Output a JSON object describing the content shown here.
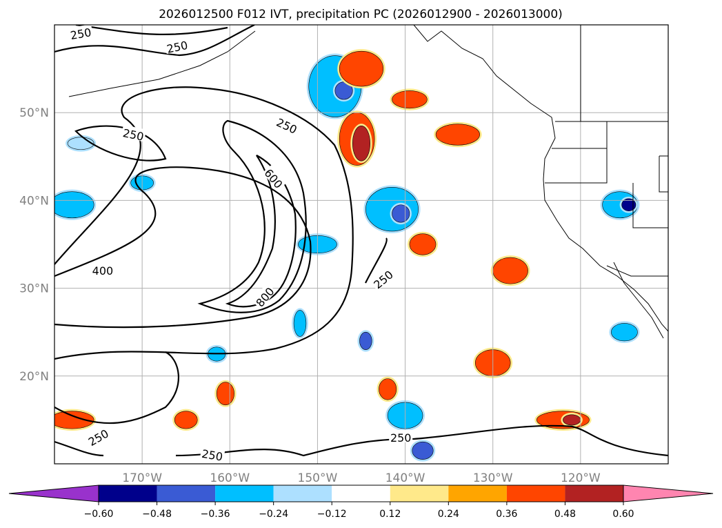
{
  "chart_data": {
    "type": "map-contour",
    "title": "2026012500 F012 IVT, precipitation PC (2026012900 - 2026013000)",
    "lon_range": [
      -180,
      -110
    ],
    "lat_range": [
      10,
      60
    ],
    "lat_ticks": [
      {
        "value": 20,
        "label": "20°N"
      },
      {
        "value": 30,
        "label": "30°N"
      },
      {
        "value": 40,
        "label": "40°N"
      },
      {
        "value": 50,
        "label": "50°N"
      }
    ],
    "lon_ticks": [
      {
        "value": -170,
        "label": "170°W"
      },
      {
        "value": -160,
        "label": "160°W"
      },
      {
        "value": -150,
        "label": "150°W"
      },
      {
        "value": -140,
        "label": "140°W"
      },
      {
        "value": -130,
        "label": "130°W"
      },
      {
        "value": -120,
        "label": "120°W"
      }
    ],
    "grid": true,
    "ivt_contour_levels": [
      250,
      400,
      600,
      800
    ],
    "ivt_contour_labels": [
      {
        "text": "250",
        "lon": -177,
        "lat": 59,
        "rot": -10
      },
      {
        "text": "250",
        "lon": -166,
        "lat": 57.5,
        "rot": -12
      },
      {
        "text": "250",
        "lon": -171,
        "lat": 47.5,
        "rot": 12
      },
      {
        "text": "250",
        "lon": -153.5,
        "lat": 48.5,
        "rot": 25
      },
      {
        "text": "600",
        "lon": -155,
        "lat": 42.5,
        "rot": 50
      },
      {
        "text": "400",
        "lon": -174.5,
        "lat": 32,
        "rot": 0
      },
      {
        "text": "800",
        "lon": -156,
        "lat": 29,
        "rot": -50
      },
      {
        "text": "250",
        "lon": -142.5,
        "lat": 31,
        "rot": -40
      },
      {
        "text": "250",
        "lon": -175,
        "lat": 13,
        "rot": -30
      },
      {
        "text": "250",
        "lon": -162,
        "lat": 11,
        "rot": 10
      },
      {
        "text": "250",
        "lon": -140.5,
        "lat": 13,
        "rot": 0
      }
    ],
    "colorbar": {
      "boundaries": [
        -0.6,
        -0.48,
        -0.36,
        -0.24,
        -0.12,
        0.12,
        0.24,
        0.36,
        0.48,
        0.6
      ],
      "tick_labels": [
        "−0.60",
        "−0.48",
        "−0.36",
        "−0.24",
        "−0.12",
        "0.12",
        "0.24",
        "0.36",
        "0.48",
        "0.60"
      ],
      "colors": [
        "#9932CC",
        "#00008B",
        "#3A5BD4",
        "#00BFFF",
        "#ADE0FF",
        "#FFFFFF",
        "#FFE98A",
        "#FFA500",
        "#FF4500",
        "#B22222",
        "#FF85B0"
      ],
      "extend": "both"
    },
    "precip_blobs": [
      {
        "lon": -148,
        "lat": 53,
        "rx": 3,
        "ry": 3.5,
        "level": -0.36
      },
      {
        "lon": -147,
        "lat": 52.5,
        "rx": 1,
        "ry": 1,
        "level": -0.48
      },
      {
        "lon": -141.5,
        "lat": 39,
        "rx": 3,
        "ry": 2.5,
        "level": -0.36
      },
      {
        "lon": -140.5,
        "lat": 38.5,
        "rx": 1,
        "ry": 1,
        "level": -0.48
      },
      {
        "lon": -178,
        "lat": 39.5,
        "rx": 2.5,
        "ry": 1.5,
        "level": -0.36
      },
      {
        "lon": -115.5,
        "lat": 39.5,
        "rx": 2,
        "ry": 1.5,
        "level": -0.36
      },
      {
        "lon": -114.5,
        "lat": 39.5,
        "rx": 0.8,
        "ry": 0.7,
        "level": -0.6
      },
      {
        "lon": -145.5,
        "lat": 47,
        "rx": 2,
        "ry": 3,
        "level": 0.36
      },
      {
        "lon": -145,
        "lat": 46.5,
        "rx": 1,
        "ry": 2,
        "level": 0.48
      },
      {
        "lon": -145,
        "lat": 55,
        "rx": 2.5,
        "ry": 2,
        "level": 0.36
      },
      {
        "lon": -139.5,
        "lat": 51.5,
        "rx": 2,
        "ry": 1,
        "level": 0.36
      },
      {
        "lon": -134,
        "lat": 47.5,
        "rx": 2.5,
        "ry": 1.2,
        "level": 0.36
      },
      {
        "lon": -138,
        "lat": 35,
        "rx": 1.5,
        "ry": 1.2,
        "level": 0.36
      },
      {
        "lon": -128,
        "lat": 32,
        "rx": 2,
        "ry": 1.5,
        "level": 0.36
      },
      {
        "lon": -130,
        "lat": 21.5,
        "rx": 2,
        "ry": 1.5,
        "level": 0.36
      },
      {
        "lon": -122,
        "lat": 15,
        "rx": 3,
        "ry": 1,
        "level": 0.36
      },
      {
        "lon": -121,
        "lat": 15,
        "rx": 1,
        "ry": 0.6,
        "level": 0.48
      },
      {
        "lon": -178,
        "lat": 15,
        "rx": 2.5,
        "ry": 1,
        "level": 0.36
      },
      {
        "lon": -165,
        "lat": 15,
        "rx": 1.3,
        "ry": 1,
        "level": 0.36
      },
      {
        "lon": -160.5,
        "lat": 18,
        "rx": 1,
        "ry": 1.3,
        "level": 0.36
      },
      {
        "lon": -142,
        "lat": 18.5,
        "rx": 1,
        "ry": 1.2,
        "level": 0.36
      },
      {
        "lon": -150,
        "lat": 35,
        "rx": 2.2,
        "ry": 1,
        "level": -0.36
      },
      {
        "lon": -152,
        "lat": 26,
        "rx": 0.7,
        "ry": 1.5,
        "level": -0.36
      },
      {
        "lon": -144.5,
        "lat": 24,
        "rx": 0.7,
        "ry": 1,
        "level": -0.48
      },
      {
        "lon": -140,
        "lat": 15.5,
        "rx": 2,
        "ry": 1.5,
        "level": -0.36
      },
      {
        "lon": -138,
        "lat": 11.5,
        "rx": 1.2,
        "ry": 1,
        "level": -0.48
      },
      {
        "lon": -161.5,
        "lat": 22.5,
        "rx": 1,
        "ry": 0.8,
        "level": -0.36
      },
      {
        "lon": -177,
        "lat": 46.5,
        "rx": 1.5,
        "ry": 0.7,
        "level": -0.24
      },
      {
        "lon": -170,
        "lat": 42,
        "rx": 1.3,
        "ry": 0.8,
        "level": -0.36
      },
      {
        "lon": -115,
        "lat": 25,
        "rx": 1.5,
        "ry": 1,
        "level": -0.36
      }
    ]
  }
}
